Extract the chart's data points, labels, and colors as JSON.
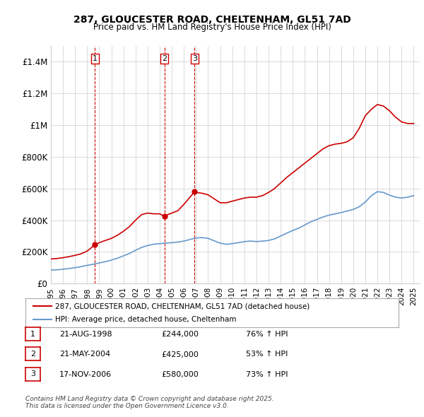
{
  "title_line1": "287, GLOUCESTER ROAD, CHELTENHAM, GL51 7AD",
  "title_line2": "Price paid vs. HM Land Registry's House Price Index (HPI)",
  "legend_entry1": "287, GLOUCESTER ROAD, CHELTENHAM, GL51 7AD (detached house)",
  "legend_entry2": "HPI: Average price, detached house, Cheltenham",
  "footer": "Contains HM Land Registry data © Crown copyright and database right 2025.\nThis data is licensed under the Open Government Licence v3.0.",
  "transactions": [
    {
      "num": 1,
      "date": "21-AUG-1998",
      "price": "£244,000",
      "hpi": "76% ↑ HPI",
      "year": 1998.64
    },
    {
      "num": 2,
      "date": "21-MAY-2004",
      "price": "£425,000",
      "hpi": "53% ↑ HPI",
      "year": 2004.39
    },
    {
      "num": 3,
      "date": "17-NOV-2006",
      "price": "£580,000",
      "hpi": "73% ↑ HPI",
      "year": 2006.88
    }
  ],
  "transaction_prices": [
    244000,
    425000,
    580000
  ],
  "ylim": [
    0,
    1500000
  ],
  "yticks": [
    0,
    200000,
    400000,
    600000,
    800000,
    1000000,
    1200000,
    1400000
  ],
  "ytick_labels": [
    "£0",
    "£200K",
    "£400K",
    "£600K",
    "£800K",
    "£1M",
    "£1.2M",
    "£1.4M"
  ],
  "red_color": "#cc0000",
  "blue_color": "#6699cc",
  "background_color": "#ffffff",
  "grid_color": "#cccccc",
  "vline_color": "#cc0000",
  "red_line_data": {
    "years": [
      1995.0,
      1995.5,
      1996.0,
      1996.5,
      1997.0,
      1997.5,
      1998.0,
      1998.64,
      1999.0,
      1999.5,
      2000.0,
      2000.5,
      2001.0,
      2001.5,
      2002.0,
      2002.5,
      2003.0,
      2003.5,
      2004.0,
      2004.39,
      2004.5,
      2005.0,
      2005.5,
      2006.0,
      2006.5,
      2006.88,
      2007.0,
      2007.5,
      2008.0,
      2008.5,
      2009.0,
      2009.5,
      2010.0,
      2010.5,
      2011.0,
      2011.5,
      2012.0,
      2012.5,
      2013.0,
      2013.5,
      2014.0,
      2014.5,
      2015.0,
      2015.5,
      2016.0,
      2016.5,
      2017.0,
      2017.5,
      2018.0,
      2018.5,
      2019.0,
      2019.5,
      2020.0,
      2020.5,
      2021.0,
      2021.5,
      2022.0,
      2022.5,
      2023.0,
      2023.5,
      2024.0,
      2024.5,
      2025.0
    ],
    "values": [
      155000,
      158000,
      163000,
      170000,
      178000,
      188000,
      205000,
      244000,
      258000,
      272000,
      285000,
      305000,
      330000,
      360000,
      400000,
      435000,
      445000,
      440000,
      440000,
      425000,
      430000,
      445000,
      460000,
      500000,
      545000,
      580000,
      575000,
      570000,
      560000,
      535000,
      510000,
      510000,
      520000,
      530000,
      540000,
      545000,
      545000,
      555000,
      575000,
      600000,
      635000,
      670000,
      700000,
      730000,
      760000,
      790000,
      820000,
      850000,
      870000,
      880000,
      885000,
      895000,
      920000,
      980000,
      1060000,
      1100000,
      1130000,
      1120000,
      1090000,
      1050000,
      1020000,
      1010000,
      1010000
    ]
  },
  "blue_line_data": {
    "years": [
      1995.0,
      1995.5,
      1996.0,
      1996.5,
      1997.0,
      1997.5,
      1998.0,
      1998.5,
      1999.0,
      1999.5,
      2000.0,
      2000.5,
      2001.0,
      2001.5,
      2002.0,
      2002.5,
      2003.0,
      2003.5,
      2004.0,
      2004.5,
      2005.0,
      2005.5,
      2006.0,
      2006.5,
      2007.0,
      2007.5,
      2008.0,
      2008.5,
      2009.0,
      2009.5,
      2010.0,
      2010.5,
      2011.0,
      2011.5,
      2012.0,
      2012.5,
      2013.0,
      2013.5,
      2014.0,
      2014.5,
      2015.0,
      2015.5,
      2016.0,
      2016.5,
      2017.0,
      2017.5,
      2018.0,
      2018.5,
      2019.0,
      2019.5,
      2020.0,
      2020.5,
      2021.0,
      2021.5,
      2022.0,
      2022.5,
      2023.0,
      2023.5,
      2024.0,
      2024.5,
      2025.0
    ],
    "values": [
      85000,
      87000,
      90000,
      95000,
      100000,
      107000,
      115000,
      122000,
      130000,
      138000,
      148000,
      160000,
      175000,
      190000,
      210000,
      228000,
      240000,
      248000,
      252000,
      255000,
      258000,
      262000,
      268000,
      278000,
      288000,
      290000,
      285000,
      270000,
      255000,
      248000,
      252000,
      258000,
      265000,
      268000,
      265000,
      268000,
      272000,
      282000,
      300000,
      318000,
      335000,
      350000,
      370000,
      390000,
      405000,
      420000,
      432000,
      440000,
      448000,
      458000,
      468000,
      485000,
      515000,
      555000,
      580000,
      575000,
      558000,
      545000,
      540000,
      545000,
      555000
    ]
  }
}
